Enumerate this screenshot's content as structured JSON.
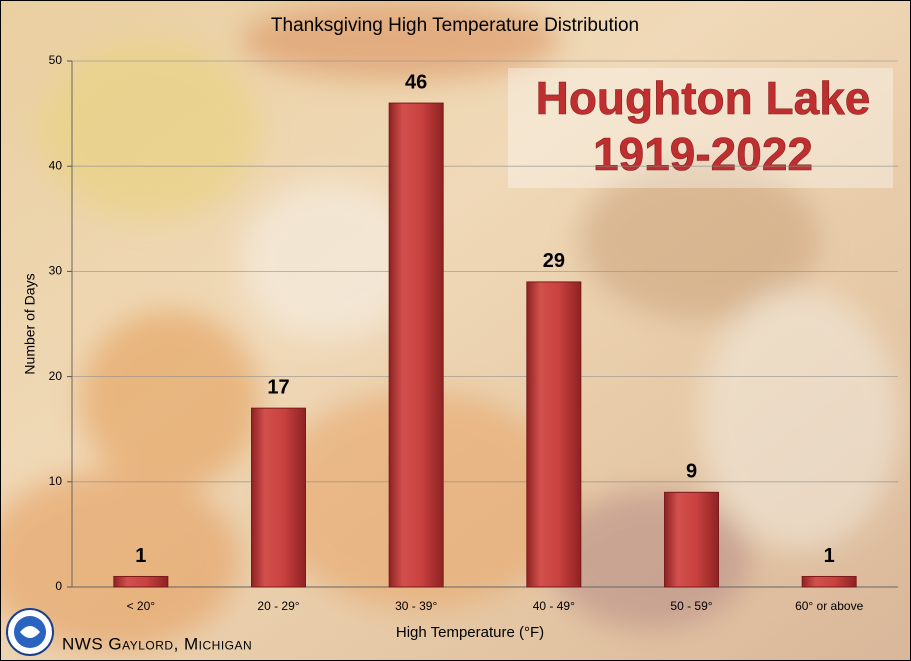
{
  "chart_data": {
    "type": "bar",
    "title": "Thanksgiving High Temperature Distribution",
    "annotation": [
      "Houghton Lake",
      "1919-2022"
    ],
    "footer": "NWS Gaylord, Michigan",
    "x_label": "High Temperature (°F)",
    "y_label": "Number of Days",
    "categories": [
      "< 20°",
      "20 - 29°",
      "30 - 39°",
      "40 - 49°",
      "50 - 59°",
      "60° or above"
    ],
    "values": [
      1,
      17,
      46,
      29,
      9,
      1
    ],
    "color": "#c8413f",
    "ylim": [
      0,
      50
    ],
    "yticks": [
      0,
      10,
      20,
      30,
      40,
      50
    ],
    "grid": true
  }
}
